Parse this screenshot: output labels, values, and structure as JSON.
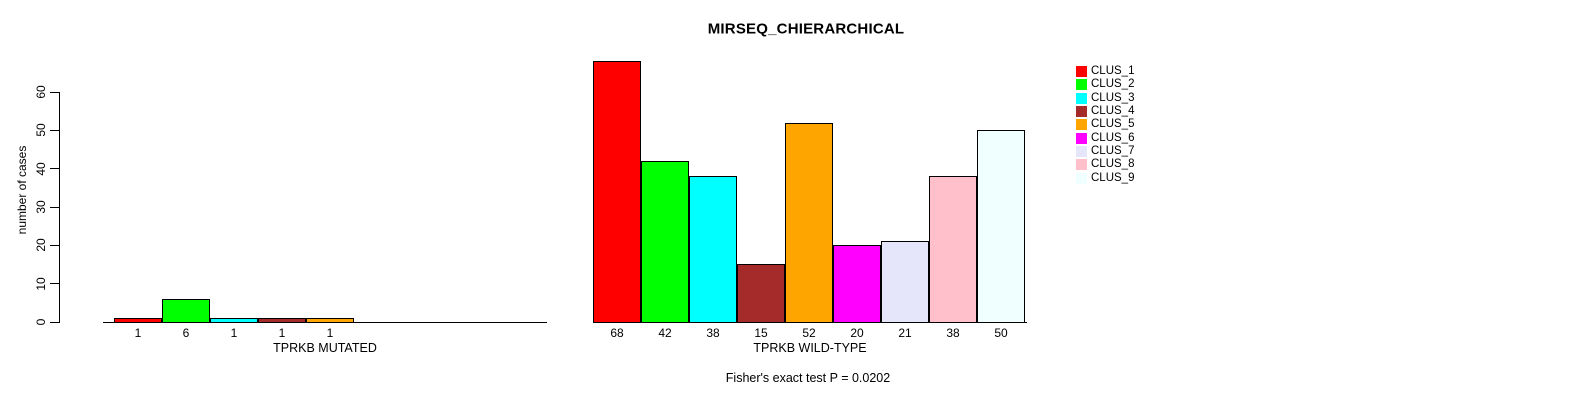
{
  "chart_data": {
    "type": "bar",
    "title": "MIRSEQ_CHIERARCHICAL",
    "ylabel": "number of cases",
    "ylim": [
      0,
      60
    ],
    "yticks": [
      0,
      10,
      20,
      30,
      40,
      50,
      60
    ],
    "grid": false,
    "legend_position": "right",
    "categories": [
      "CLUS_1",
      "CLUS_2",
      "CLUS_3",
      "CLUS_4",
      "CLUS_5",
      "CLUS_6",
      "CLUS_7",
      "CLUS_8",
      "CLUS_9"
    ],
    "colors": [
      "#ff0000",
      "#00ff00",
      "#00ffff",
      "#a52a2a",
      "#ffa500",
      "#ff00ff",
      "#e6e6fa",
      "#ffc0cb",
      "#f0ffff"
    ],
    "groups": [
      {
        "label": "TPRKB MUTATED",
        "values": [
          1,
          6,
          1,
          1,
          1,
          0,
          0,
          0,
          0
        ]
      },
      {
        "label": "TPRKB WILD-TYPE",
        "values": [
          68,
          42,
          38,
          15,
          52,
          20,
          21,
          38,
          50
        ]
      }
    ],
    "footer": "Fisher's exact test P = 0.0202"
  }
}
